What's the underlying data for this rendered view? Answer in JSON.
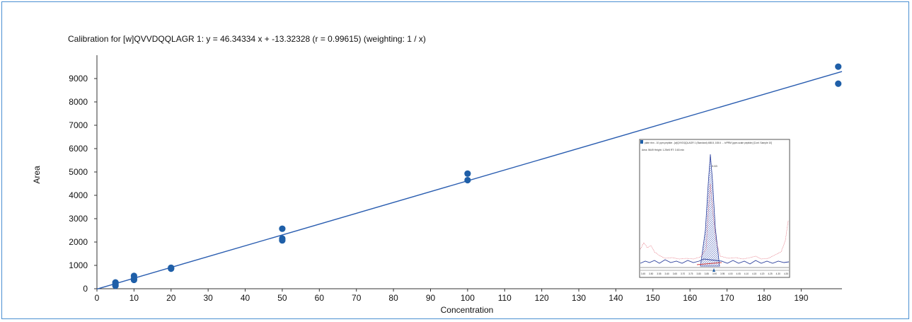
{
  "chart_data": {
    "type": "scatter",
    "title": "Calibration for [w]QVVDQQLAGR 1: y = 46.34334 x + -13.32328 (r = 0.99615)  (weighting: 1 / x)",
    "xlabel": "Concentration",
    "ylabel": "Area",
    "xlim": [
      0,
      201
    ],
    "ylim": [
      0,
      10000
    ],
    "x_ticks": [
      0,
      10,
      20,
      30,
      40,
      50,
      60,
      70,
      80,
      90,
      100,
      110,
      120,
      130,
      140,
      150,
      160,
      170,
      180,
      190
    ],
    "y_ticks": [
      0,
      1000,
      2000,
      3000,
      4000,
      5000,
      6000,
      7000,
      8000,
      9000
    ],
    "regression": {
      "slope": 46.34334,
      "intercept": -13.32328
    },
    "series": [
      {
        "points": [
          [
            5,
            270
          ],
          [
            5,
            200
          ],
          [
            5,
            130
          ],
          [
            10,
            550
          ],
          [
            10,
            420
          ],
          [
            10,
            380
          ],
          [
            20,
            900
          ],
          [
            20,
            860
          ],
          [
            50,
            2570
          ],
          [
            50,
            2150
          ],
          [
            50,
            2070
          ],
          [
            100,
            4930
          ],
          [
            100,
            4650
          ],
          [
            200,
            9510
          ],
          [
            200,
            8780
          ]
        ]
      }
    ],
    "colors": {
      "points": "#1f5fa8",
      "line": "#2a5db0"
    },
    "grid": false
  },
  "inset": {
    "header_line1": "plate rtnn - 10 ppm peptide - [w]QVVDQQLAGR 1 (Standard) 488.8, 108.6 → b/PRM (ppm-scale peptide) [Conf. Sample 10]",
    "header_line2": "Area: 5649  Height: 1.25e5  RT: 3.63 min",
    "peak_label": "3.63",
    "axis_ticks": [
      "3.45",
      "3.50",
      "3.55",
      "3.60",
      "3.65",
      "3.70",
      "3.75",
      "3.80",
      "3.85",
      "3.90",
      "3.95",
      "4.00",
      "4.05",
      "4.10",
      "4.15",
      "4.20",
      "4.25",
      "4.30",
      "4.35"
    ]
  }
}
